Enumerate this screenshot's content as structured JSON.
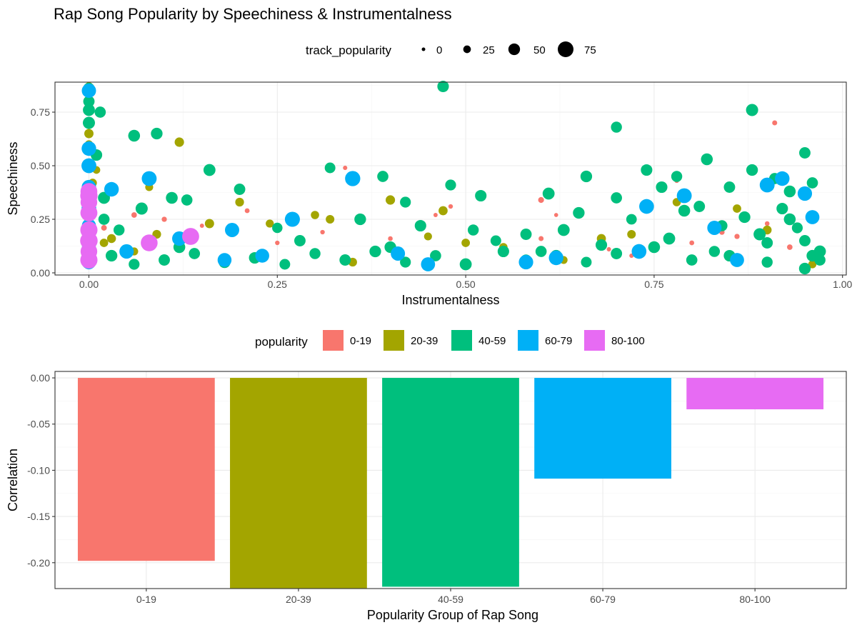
{
  "title": "Rap Song Popularity by Speechiness & Instrumentalness",
  "colors": {
    "0-19": "#F8766D",
    "20-39": "#A3A500",
    "40-59": "#00BF7D",
    "60-79": "#00B0F6",
    "80-100": "#E76BF3"
  },
  "size_legend": {
    "title": "track_popularity",
    "values": [
      0,
      25,
      50,
      75
    ],
    "labels": [
      "0",
      "25",
      "50",
      "75"
    ]
  },
  "color_legend": {
    "title": "popularity",
    "groups": [
      "0-19",
      "20-39",
      "40-59",
      "60-79",
      "80-100"
    ]
  },
  "chart_data": [
    {
      "type": "scatter",
      "xlabel": "Instrumentalness",
      "ylabel": "Speechiness",
      "xlim": [
        -0.045,
        1.005
      ],
      "ylim": [
        -0.01,
        0.89
      ],
      "xticks": [
        0,
        0.25,
        0.5,
        0.75,
        1.0
      ],
      "xtick_labels": [
        "0.00",
        "0.25",
        "0.50",
        "0.75",
        "1.00"
      ],
      "yticks": [
        0,
        0.25,
        0.5,
        0.75
      ],
      "ytick_labels": [
        "0.00",
        "0.25",
        "0.50",
        "0.75"
      ],
      "grid": true,
      "series": [
        {
          "name": "0-19",
          "points": [
            [
              0.06,
              0.27
            ],
            [
              0.21,
              0.29
            ],
            [
              0.1,
              0.25
            ],
            [
              0.31,
              0.19
            ],
            [
              0.34,
              0.49
            ],
            [
              0.4,
              0.16
            ],
            [
              0.46,
              0.27
            ],
            [
              0.48,
              0.31
            ],
            [
              0.6,
              0.16
            ],
            [
              0.6,
              0.34
            ],
            [
              0.62,
              0.27
            ],
            [
              0.69,
              0.11
            ],
            [
              0.78,
              0.43
            ],
            [
              0.8,
              0.14
            ],
            [
              0.86,
              0.17
            ],
            [
              0.9,
              0.23
            ],
            [
              0.91,
              0.7
            ],
            [
              0.93,
              0.12
            ],
            [
              0.15,
              0.22
            ],
            [
              0.25,
              0.14
            ],
            [
              0.55,
              0.12
            ],
            [
              0.72,
              0.08
            ],
            [
              0.84,
              0.19
            ],
            [
              0.02,
              0.21
            ]
          ],
          "popularity": [
            12,
            8,
            10,
            6,
            5,
            7,
            4,
            6,
            9,
            14,
            3,
            5,
            6,
            8,
            10,
            7,
            9,
            12,
            4,
            6,
            9,
            5,
            11,
            13
          ]
        },
        {
          "name": "20-39",
          "points": [
            [
              0.0,
              0.87
            ],
            [
              0.0,
              0.65
            ],
            [
              0.0,
              0.6
            ],
            [
              0.0,
              0.5
            ],
            [
              0.01,
              0.48
            ],
            [
              0.005,
              0.42
            ],
            [
              0.12,
              0.61
            ],
            [
              0.2,
              0.33
            ],
            [
              0.24,
              0.23
            ],
            [
              0.3,
              0.27
            ],
            [
              0.32,
              0.25
            ],
            [
              0.45,
              0.17
            ],
            [
              0.47,
              0.29
            ],
            [
              0.5,
              0.14
            ],
            [
              0.03,
              0.16
            ],
            [
              0.06,
              0.1
            ],
            [
              0.09,
              0.18
            ],
            [
              0.16,
              0.23
            ],
            [
              0.4,
              0.34
            ],
            [
              0.55,
              0.12
            ],
            [
              0.68,
              0.16
            ],
            [
              0.72,
              0.18
            ],
            [
              0.86,
              0.3
            ],
            [
              0.9,
              0.2
            ],
            [
              0.96,
              0.04
            ],
            [
              0.78,
              0.33
            ],
            [
              0.63,
              0.06
            ],
            [
              0.35,
              0.05
            ],
            [
              0.08,
              0.4
            ],
            [
              0.02,
              0.14
            ]
          ],
          "popularity": [
            30,
            35,
            28,
            33,
            25,
            30,
            36,
            32,
            28,
            29,
            31,
            27,
            34,
            30,
            33,
            28,
            32,
            35,
            36,
            29,
            34,
            31,
            30,
            33,
            28,
            29,
            26,
            32,
            27,
            30
          ]
        },
        {
          "name": "40-59",
          "points": [
            [
              0.0,
              0.86
            ],
            [
              0.0,
              0.8
            ],
            [
              0.0,
              0.76
            ],
            [
              0.015,
              0.75
            ],
            [
              0.47,
              0.87
            ],
            [
              0.06,
              0.64
            ],
            [
              0.09,
              0.65
            ],
            [
              0.88,
              0.76
            ],
            [
              0.7,
              0.68
            ],
            [
              0.95,
              0.56
            ],
            [
              0.32,
              0.49
            ],
            [
              0.16,
              0.48
            ],
            [
              0.39,
              0.45
            ],
            [
              0.48,
              0.41
            ],
            [
              0.66,
              0.45
            ],
            [
              0.74,
              0.48
            ],
            [
              0.78,
              0.45
            ],
            [
              0.82,
              0.53
            ],
            [
              0.85,
              0.4
            ],
            [
              0.88,
              0.48
            ],
            [
              0.96,
              0.42
            ],
            [
              0.61,
              0.37
            ],
            [
              0.52,
              0.36
            ],
            [
              0.42,
              0.33
            ],
            [
              0.2,
              0.39
            ],
            [
              0.11,
              0.35
            ],
            [
              0.07,
              0.3
            ],
            [
              0.13,
              0.34
            ],
            [
              0.25,
              0.21
            ],
            [
              0.36,
              0.25
            ],
            [
              0.44,
              0.22
            ],
            [
              0.51,
              0.2
            ],
            [
              0.54,
              0.15
            ],
            [
              0.58,
              0.18
            ],
            [
              0.63,
              0.2
            ],
            [
              0.65,
              0.28
            ],
            [
              0.7,
              0.35
            ],
            [
              0.72,
              0.25
            ],
            [
              0.76,
              0.4
            ],
            [
              0.79,
              0.29
            ],
            [
              0.81,
              0.31
            ],
            [
              0.84,
              0.22
            ],
            [
              0.87,
              0.26
            ],
            [
              0.89,
              0.18
            ],
            [
              0.91,
              0.44
            ],
            [
              0.92,
              0.3
            ],
            [
              0.93,
              0.25
            ],
            [
              0.94,
              0.21
            ],
            [
              0.95,
              0.15
            ],
            [
              0.96,
              0.08
            ],
            [
              0.97,
              0.1
            ],
            [
              0.9,
              0.05
            ],
            [
              0.85,
              0.08
            ],
            [
              0.8,
              0.06
            ],
            [
              0.75,
              0.12
            ],
            [
              0.7,
              0.09
            ],
            [
              0.66,
              0.05
            ],
            [
              0.62,
              0.08
            ],
            [
              0.58,
              0.06
            ],
            [
              0.55,
              0.1
            ],
            [
              0.5,
              0.04
            ],
            [
              0.46,
              0.08
            ],
            [
              0.42,
              0.05
            ],
            [
              0.38,
              0.1
            ],
            [
              0.34,
              0.06
            ],
            [
              0.3,
              0.09
            ],
            [
              0.26,
              0.04
            ],
            [
              0.22,
              0.07
            ],
            [
              0.18,
              0.05
            ],
            [
              0.14,
              0.09
            ],
            [
              0.1,
              0.06
            ],
            [
              0.06,
              0.04
            ],
            [
              0.03,
              0.08
            ],
            [
              0.02,
              0.35
            ],
            [
              0.01,
              0.55
            ],
            [
              0.02,
              0.25
            ],
            [
              0.04,
              0.2
            ],
            [
              0.12,
              0.12
            ],
            [
              0.28,
              0.15
            ],
            [
              0.4,
              0.12
            ],
            [
              0.6,
              0.1
            ],
            [
              0.68,
              0.13
            ],
            [
              0.77,
              0.16
            ],
            [
              0.83,
              0.1
            ],
            [
              0.9,
              0.14
            ],
            [
              0.95,
              0.02
            ],
            [
              0.93,
              0.38
            ],
            [
              0.97,
              0.06
            ],
            [
              0.0,
              0.7
            ],
            [
              0.0,
              0.58
            ]
          ],
          "popularity": [
            50,
            48,
            52,
            47,
            49,
            51,
            50,
            53,
            46,
            48,
            44,
            52,
            47,
            45,
            50,
            49,
            46,
            51,
            48,
            50,
            47,
            52,
            49,
            45,
            48,
            51,
            53,
            47,
            42,
            50,
            49,
            46,
            44,
            48,
            52,
            50,
            47,
            43,
            49,
            51,
            48,
            46,
            50,
            53,
            47,
            49,
            51,
            45,
            48,
            50,
            52,
            46,
            49,
            47,
            51,
            48,
            44,
            50,
            46,
            49,
            52,
            47,
            45,
            50,
            48,
            46,
            44,
            49,
            51,
            47,
            48,
            45,
            50,
            52,
            49,
            47,
            46,
            51,
            48,
            50,
            47,
            49,
            52,
            46,
            48,
            50,
            51,
            47,
            53,
            49
          ]
        },
        {
          "name": "60-79",
          "points": [
            [
              0.0,
              0.85
            ],
            [
              0.0,
              0.58
            ],
            [
              0.0,
              0.5
            ],
            [
              0.0,
              0.4
            ],
            [
              0.0,
              0.3
            ],
            [
              0.0,
              0.22
            ],
            [
              0.0,
              0.12
            ],
            [
              0.0,
              0.05
            ],
            [
              0.08,
              0.44
            ],
            [
              0.35,
              0.44
            ],
            [
              0.92,
              0.44
            ],
            [
              0.95,
              0.37
            ],
            [
              0.96,
              0.26
            ],
            [
              0.74,
              0.31
            ],
            [
              0.79,
              0.36
            ],
            [
              0.27,
              0.25
            ],
            [
              0.19,
              0.2
            ],
            [
              0.03,
              0.39
            ],
            [
              0.12,
              0.16
            ],
            [
              0.23,
              0.08
            ],
            [
              0.41,
              0.09
            ],
            [
              0.45,
              0.04
            ],
            [
              0.58,
              0.05
            ],
            [
              0.62,
              0.07
            ],
            [
              0.73,
              0.1
            ],
            [
              0.83,
              0.21
            ],
            [
              0.86,
              0.06
            ],
            [
              0.9,
              0.41
            ],
            [
              0.18,
              0.06
            ],
            [
              0.05,
              0.1
            ]
          ],
          "popularity": [
            66,
            68,
            70,
            67,
            69,
            65,
            64,
            66,
            70,
            72,
            68,
            67,
            65,
            69,
            70,
            71,
            66,
            68,
            67,
            64,
            66,
            65,
            67,
            68,
            69,
            66,
            65,
            70,
            64,
            67
          ]
        },
        {
          "name": "80-100",
          "points": [
            [
              0.0,
              0.38
            ],
            [
              0.0,
              0.36
            ],
            [
              0.0,
              0.33
            ],
            [
              0.0,
              0.28
            ],
            [
              0.0,
              0.2
            ],
            [
              0.0,
              0.15
            ],
            [
              0.08,
              0.14
            ],
            [
              0.135,
              0.17
            ],
            [
              0.0,
              0.1
            ],
            [
              0.0,
              0.06
            ]
          ],
          "popularity": [
            82,
            85,
            81,
            83,
            84,
            86,
            82,
            83,
            81,
            84
          ]
        }
      ]
    },
    {
      "type": "bar",
      "xlabel": "Popularity Group of Rap Song",
      "ylabel": "Correlation",
      "categories": [
        "0-19",
        "20-39",
        "40-59",
        "60-79",
        "80-100"
      ],
      "values": [
        -0.198,
        -0.228,
        -0.226,
        -0.109,
        -0.034
      ],
      "ylim": [
        -0.228,
        0.007
      ],
      "yticks": [
        0,
        -0.05,
        -0.1,
        -0.15,
        -0.2
      ],
      "ytick_labels": [
        "0.00",
        "-0.05",
        "-0.10",
        "-0.15",
        "-0.20"
      ],
      "grid": true
    }
  ]
}
